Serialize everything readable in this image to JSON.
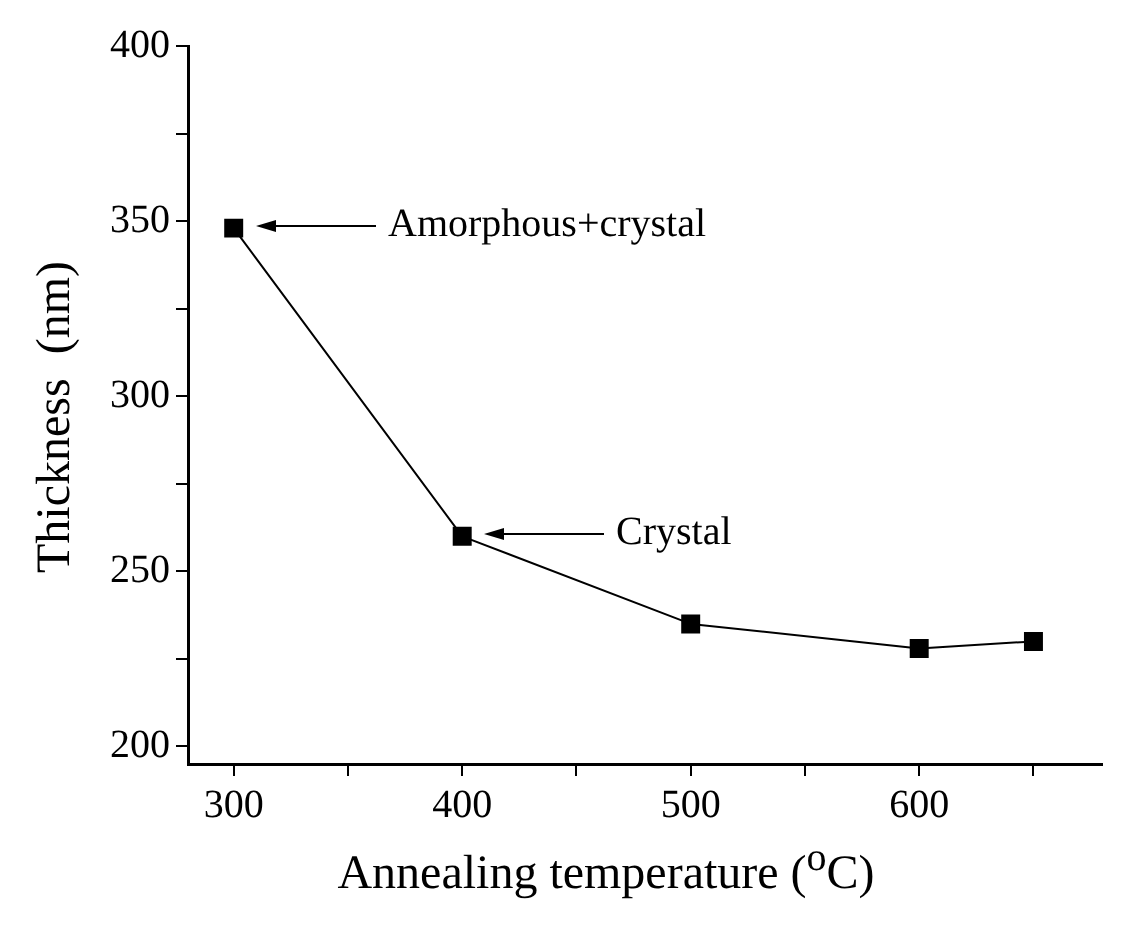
{
  "chart_data": {
    "type": "line",
    "xlabel": "Annealing temperature ($^{o}$C)",
    "ylabel": "Thickness  (nm)",
    "x": [
      300,
      400,
      500,
      600,
      650
    ],
    "series": [
      {
        "color": "#000000",
        "values": [
          348,
          260,
          235,
          228,
          230
        ]
      }
    ],
    "marker": "square",
    "line_style": "solid",
    "xlim": [
      280,
      680
    ],
    "xticks": [
      300,
      {
        "value": 350,
        "label": null
      },
      400,
      {
        "value": 450,
        "label": null
      },
      500,
      {
        "value": 550,
        "label": null
      },
      600,
      {
        "value": 650,
        "label": null
      }
    ],
    "ylim": [
      195,
      400
    ],
    "yticks": [
      200,
      {
        "value": 225,
        "label": null
      },
      250,
      {
        "value": 275,
        "label": null
      },
      300,
      {
        "value": 325,
        "label": null
      },
      350,
      {
        "value": 375,
        "label": null
      },
      400
    ],
    "annotations": [
      "Amorphous+crystal",
      "Crystal"
    ]
  }
}
